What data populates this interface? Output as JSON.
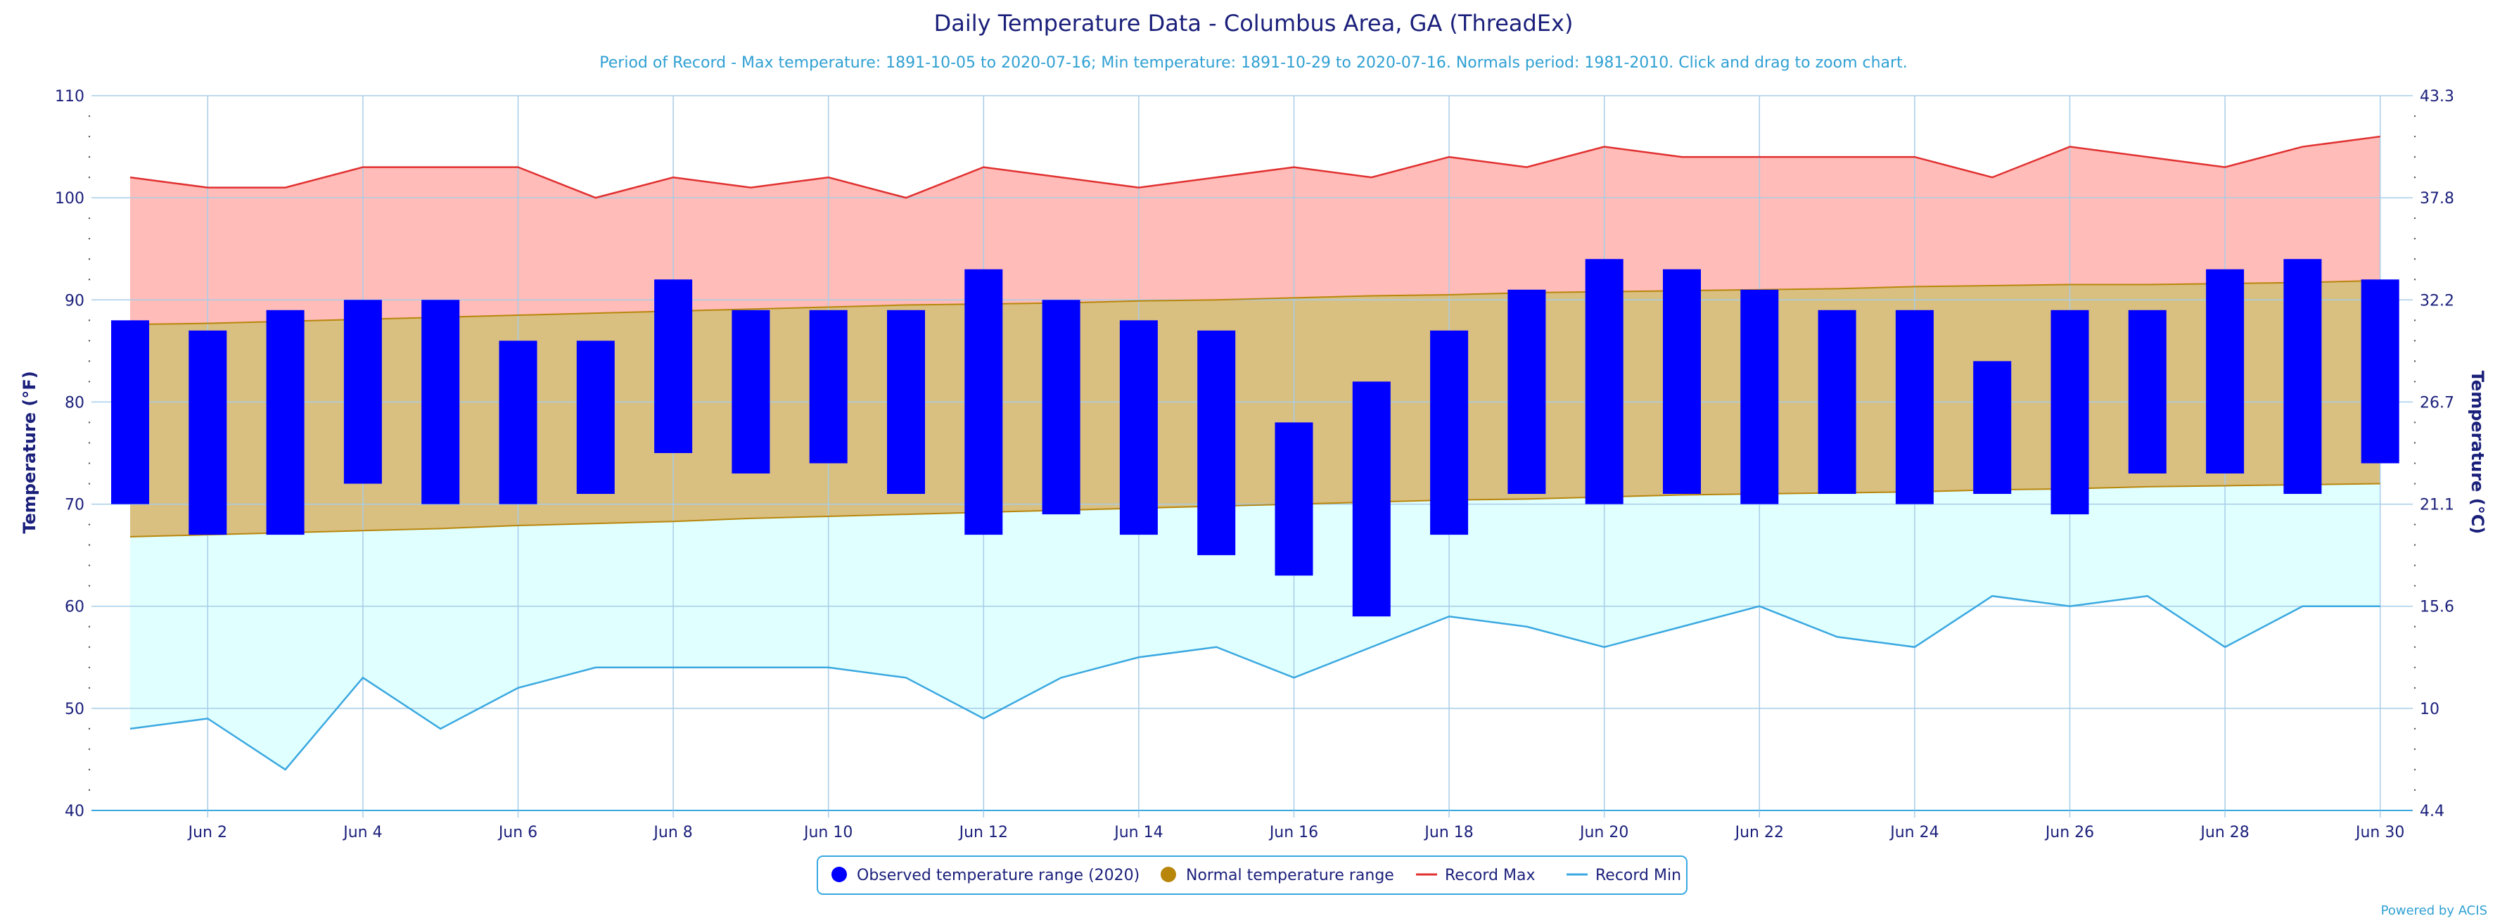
{
  "chart_data": {
    "type": "bar",
    "title": "Daily Temperature Data - Columbus Area, GA (ThreadEx)",
    "subtitle": "Period of Record - Max temperature: 1891-10-05 to 2020-07-16; Min temperature: 1891-10-29 to 2020-07-16. Normals period: 1981-2010. Click and drag to zoom chart.",
    "ylabel_left": "Temperature (°F)",
    "ylabel_right": "Temperature (°C)",
    "ylim": [
      40,
      110
    ],
    "y_ticks_left": [
      40,
      50,
      60,
      70,
      80,
      90,
      100,
      110
    ],
    "y_ticks_right": [
      "4.4",
      "10",
      "15.6",
      "21.1",
      "26.7",
      "32.2",
      "37.8",
      "43.3"
    ],
    "x_ticks": [
      "Jun 2",
      "Jun 4",
      "Jun 6",
      "Jun 8",
      "Jun 10",
      "Jun 12",
      "Jun 14",
      "Jun 16",
      "Jun 18",
      "Jun 20",
      "Jun 22",
      "Jun 24",
      "Jun 26",
      "Jun 28",
      "Jun 30"
    ],
    "days": [
      1,
      2,
      3,
      4,
      5,
      6,
      7,
      8,
      9,
      10,
      11,
      12,
      13,
      14,
      15,
      16,
      17,
      18,
      19,
      20,
      21,
      22,
      23,
      24,
      25,
      26,
      27,
      28,
      29,
      30
    ],
    "observed_high": [
      88,
      87,
      89,
      90,
      90,
      86,
      86,
      92,
      89,
      89,
      89,
      93,
      90,
      88,
      87,
      78,
      82,
      87,
      91,
      94,
      93,
      91,
      89,
      89,
      84,
      89,
      89,
      93,
      94,
      92
    ],
    "observed_low": [
      70,
      67,
      67,
      72,
      70,
      70,
      71,
      75,
      73,
      74,
      71,
      67,
      69,
      67,
      65,
      63,
      59,
      67,
      71,
      70,
      71,
      70,
      71,
      70,
      71,
      69,
      73,
      73,
      71,
      74
    ],
    "normal_high": [
      87.6,
      87.7,
      87.9,
      88.1,
      88.3,
      88.5,
      88.7,
      88.9,
      89.1,
      89.3,
      89.5,
      89.6,
      89.7,
      89.9,
      90.0,
      90.2,
      90.4,
      90.5,
      90.7,
      90.8,
      90.9,
      91.0,
      91.1,
      91.3,
      91.4,
      91.5,
      91.5,
      91.6,
      91.7,
      91.9
    ],
    "normal_low": [
      66.8,
      67.0,
      67.2,
      67.4,
      67.6,
      67.9,
      68.1,
      68.3,
      68.6,
      68.8,
      69.0,
      69.2,
      69.4,
      69.6,
      69.8,
      70.0,
      70.2,
      70.4,
      70.5,
      70.7,
      70.9,
      71.0,
      71.1,
      71.2,
      71.4,
      71.5,
      71.7,
      71.8,
      71.9,
      72.0
    ],
    "record_max": [
      102,
      101,
      101,
      103,
      103,
      103,
      100,
      102,
      101,
      102,
      100,
      103,
      102,
      101,
      102,
      103,
      102,
      104,
      103,
      105,
      104,
      104,
      104,
      104,
      102,
      105,
      104,
      103,
      105,
      106
    ],
    "record_min": [
      48,
      49,
      44,
      53,
      48,
      52,
      54,
      54,
      54,
      54,
      53,
      49,
      53,
      55,
      56,
      53,
      56,
      59,
      58,
      56,
      58,
      60,
      57,
      56,
      61,
      60,
      61,
      56,
      60,
      60
    ],
    "legend": [
      "Observed temperature range (2020)",
      "Normal temperature range",
      "Record Max",
      "Record Min"
    ],
    "legend_position": "bottom-center",
    "grid": true
  },
  "colors": {
    "observed": "#0000ff",
    "normal_fill": "#d9bf80",
    "normal_stroke": "#b8860b",
    "normal_marker": "#b8860b",
    "record_max_fill": "#ffbcb8",
    "record_max_line": "#e03030",
    "record_min_fill": "#e0ffff",
    "record_min_line": "#3aa8e0",
    "grid": "#a8cde8",
    "axis_text": "#1a1f7a"
  },
  "credit": "Powered by ACIS"
}
